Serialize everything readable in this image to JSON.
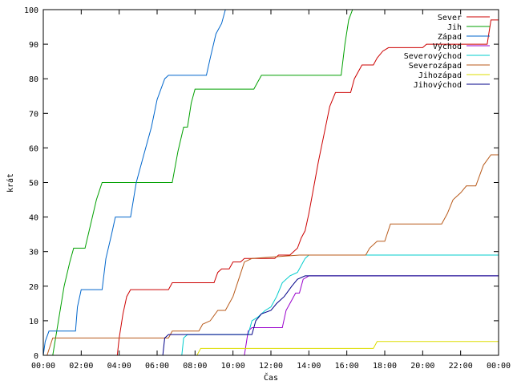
{
  "chart_data": {
    "type": "line",
    "title": "",
    "xlabel": "Čas",
    "ylabel": "krát",
    "xlim": [
      0,
      24
    ],
    "ylim": [
      0,
      100
    ],
    "x_ticks": [
      0,
      2,
      4,
      6,
      8,
      10,
      12,
      14,
      16,
      18,
      20,
      22,
      24
    ],
    "x_tick_labels": [
      "00:00",
      "02:00",
      "04:00",
      "06:00",
      "08:00",
      "10:00",
      "12:00",
      "14:00",
      "16:00",
      "18:00",
      "20:00",
      "22:00",
      "00:00"
    ],
    "y_ticks": [
      0,
      10,
      20,
      30,
      40,
      50,
      60,
      70,
      80,
      90,
      100
    ],
    "grid": false,
    "legend_position": "top-right",
    "series": [
      {
        "name": "Sever",
        "color": "#cc0000",
        "points": [
          [
            3.9,
            0
          ],
          [
            4.0,
            5
          ],
          [
            4.2,
            12
          ],
          [
            4.4,
            17
          ],
          [
            4.6,
            19
          ],
          [
            6.6,
            19
          ],
          [
            6.8,
            21
          ],
          [
            9.0,
            21
          ],
          [
            9.2,
            24
          ],
          [
            9.4,
            25
          ],
          [
            9.8,
            25
          ],
          [
            10.0,
            27
          ],
          [
            10.4,
            27
          ],
          [
            10.6,
            28
          ],
          [
            12.2,
            28
          ],
          [
            12.4,
            29
          ],
          [
            13.0,
            29
          ],
          [
            13.4,
            31
          ],
          [
            13.6,
            34
          ],
          [
            13.8,
            36
          ],
          [
            14.0,
            41
          ],
          [
            14.2,
            47
          ],
          [
            14.5,
            56
          ],
          [
            14.8,
            64
          ],
          [
            15.1,
            72
          ],
          [
            15.4,
            76
          ],
          [
            16.2,
            76
          ],
          [
            16.4,
            80
          ],
          [
            16.8,
            84
          ],
          [
            17.4,
            84
          ],
          [
            17.6,
            86
          ],
          [
            17.9,
            88
          ],
          [
            18.2,
            89
          ],
          [
            20.0,
            89
          ],
          [
            20.2,
            90
          ],
          [
            23.4,
            90
          ],
          [
            23.6,
            97
          ],
          [
            24.0,
            97
          ]
        ]
      },
      {
        "name": "Jih",
        "color": "#00a000",
        "points": [
          [
            0,
            0
          ],
          [
            0.5,
            0
          ],
          [
            0.8,
            10
          ],
          [
            1.1,
            20
          ],
          [
            1.4,
            27
          ],
          [
            1.6,
            31
          ],
          [
            2.2,
            31
          ],
          [
            2.5,
            38
          ],
          [
            2.8,
            45
          ],
          [
            3.1,
            50
          ],
          [
            6.8,
            50
          ],
          [
            7.1,
            59
          ],
          [
            7.4,
            66
          ],
          [
            7.6,
            66
          ],
          [
            7.8,
            73
          ],
          [
            8.0,
            77
          ],
          [
            11.1,
            77
          ],
          [
            11.3,
            79
          ],
          [
            11.5,
            81
          ],
          [
            15.7,
            81
          ],
          [
            15.9,
            90
          ],
          [
            16.1,
            97
          ],
          [
            16.3,
            100
          ]
        ]
      },
      {
        "name": "Západ",
        "color": "#0066cc",
        "points": [
          [
            0,
            0
          ],
          [
            0.1,
            4
          ],
          [
            0.3,
            7
          ],
          [
            1.7,
            7
          ],
          [
            1.8,
            14
          ],
          [
            2.0,
            19
          ],
          [
            3.1,
            19
          ],
          [
            3.3,
            28
          ],
          [
            3.6,
            35
          ],
          [
            3.8,
            40
          ],
          [
            4.6,
            40
          ],
          [
            4.9,
            50
          ],
          [
            5.3,
            58
          ],
          [
            5.7,
            66
          ],
          [
            6.0,
            74
          ],
          [
            6.4,
            80
          ],
          [
            6.6,
            81
          ],
          [
            8.6,
            81
          ],
          [
            8.8,
            86
          ],
          [
            9.1,
            93
          ],
          [
            9.4,
            96
          ],
          [
            9.6,
            100
          ]
        ]
      },
      {
        "name": "Východ",
        "color": "#9900cc",
        "points": [
          [
            10.4,
            0
          ],
          [
            10.6,
            0
          ],
          [
            10.8,
            7
          ],
          [
            11.0,
            8
          ],
          [
            12.6,
            8
          ],
          [
            12.8,
            13
          ],
          [
            13.0,
            15
          ],
          [
            13.3,
            18
          ],
          [
            13.5,
            18
          ],
          [
            13.7,
            22
          ],
          [
            14.0,
            23
          ],
          [
            24.0,
            23
          ]
        ]
      },
      {
        "name": "Severovýchod",
        "color": "#00cccc",
        "points": [
          [
            7.3,
            0
          ],
          [
            7.4,
            5
          ],
          [
            7.6,
            6
          ],
          [
            10.8,
            6
          ],
          [
            11.0,
            10
          ],
          [
            11.3,
            11
          ],
          [
            11.7,
            13
          ],
          [
            12.0,
            14
          ],
          [
            12.3,
            17
          ],
          [
            12.6,
            21
          ],
          [
            13.0,
            23
          ],
          [
            13.4,
            24
          ],
          [
            13.8,
            28
          ],
          [
            14.0,
            29
          ],
          [
            24.0,
            29
          ]
        ]
      },
      {
        "name": "Severozápad",
        "color": "#b85a1a",
        "points": [
          [
            0,
            0
          ],
          [
            0.2,
            0
          ],
          [
            0.5,
            5
          ],
          [
            6.6,
            5
          ],
          [
            6.8,
            7
          ],
          [
            8.2,
            7
          ],
          [
            8.4,
            9
          ],
          [
            8.8,
            10
          ],
          [
            9.2,
            13
          ],
          [
            9.6,
            13
          ],
          [
            10.0,
            17
          ],
          [
            10.3,
            22
          ],
          [
            10.6,
            27
          ],
          [
            11.0,
            28
          ],
          [
            13.5,
            29
          ],
          [
            17.0,
            29
          ],
          [
            17.2,
            31
          ],
          [
            17.6,
            33
          ],
          [
            18.0,
            33
          ],
          [
            18.3,
            38
          ],
          [
            21.0,
            38
          ],
          [
            21.3,
            41
          ],
          [
            21.6,
            45
          ],
          [
            22.0,
            47
          ],
          [
            22.3,
            49
          ],
          [
            22.8,
            49
          ],
          [
            23.2,
            55
          ],
          [
            23.6,
            58
          ],
          [
            24.0,
            58
          ]
        ]
      },
      {
        "name": "Jihozápad",
        "color": "#dddd00",
        "points": [
          [
            8.1,
            0
          ],
          [
            8.3,
            2
          ],
          [
            17.4,
            2
          ],
          [
            17.6,
            4
          ],
          [
            24.0,
            4
          ]
        ]
      },
      {
        "name": "Jihovýchod",
        "color": "#000088",
        "points": [
          [
            6.3,
            0
          ],
          [
            6.4,
            5
          ],
          [
            6.6,
            6
          ],
          [
            11.0,
            6
          ],
          [
            11.2,
            10
          ],
          [
            11.5,
            12
          ],
          [
            12.0,
            13
          ],
          [
            12.3,
            15
          ],
          [
            12.7,
            17
          ],
          [
            13.1,
            20
          ],
          [
            13.4,
            22
          ],
          [
            13.8,
            23
          ],
          [
            24.0,
            23
          ]
        ]
      }
    ]
  }
}
